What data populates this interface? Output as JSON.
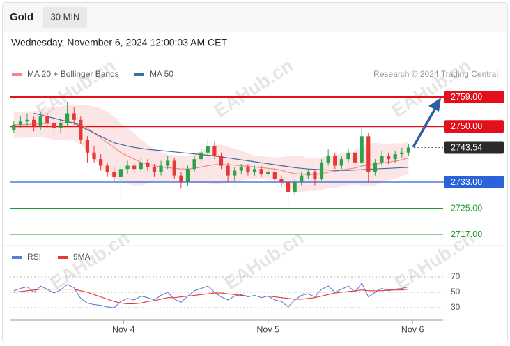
{
  "header": {
    "symbol": "Gold",
    "timeframe": "30 MIN",
    "datetime": "Wednesday, November 6, 2024 12:00:03 AM CET"
  },
  "watermark": "EAHub.cn",
  "chart_data": [
    {
      "type": "candlestick",
      "credit": "Research © 2024 Trading Central",
      "xlim": [
        -0.5,
        60
      ],
      "ylim": [
        2715,
        2761.5
      ],
      "up_color": "#2ba24c",
      "down_color": "#e53935",
      "open": [
        2749,
        2750.5,
        2751.5,
        2752,
        2750,
        2753,
        2751,
        2749.5,
        2751,
        2754,
        2752,
        2746,
        2742,
        2740,
        2738,
        2736,
        2734.5,
        2737,
        2738,
        2737,
        2739,
        2737.5,
        2736,
        2738,
        2739.5,
        2735,
        2733,
        2737,
        2740,
        2742,
        2744,
        2741,
        2738,
        2735,
        2736.5,
        2737.5,
        2736,
        2737,
        2735.5,
        2736,
        2734,
        2733,
        2730,
        2733,
        2735,
        2736,
        2734,
        2739,
        2741,
        2738,
        2740,
        2742,
        2739,
        2747,
        2736,
        2739,
        2741,
        2740,
        2741.5,
        2742
      ],
      "high": [
        2751.5,
        2753,
        2754,
        2753,
        2754.5,
        2754,
        2752,
        2752.5,
        2757.5,
        2756,
        2753,
        2747,
        2744,
        2741.5,
        2739,
        2737.5,
        2738,
        2739.5,
        2739,
        2740.5,
        2740,
        2738.5,
        2739.5,
        2741,
        2740.5,
        2736,
        2738,
        2741,
        2743.5,
        2746,
        2745.5,
        2742,
        2739,
        2737.5,
        2738.5,
        2738.5,
        2738,
        2738,
        2737,
        2737,
        2735,
        2734,
        2734,
        2736,
        2737,
        2737,
        2740,
        2743,
        2742,
        2741,
        2743,
        2743,
        2749.5,
        2748,
        2740,
        2742.5,
        2742,
        2742.5,
        2743.5,
        2744.5
      ],
      "low": [
        2748,
        2749.5,
        2750,
        2748.5,
        2749,
        2749.5,
        2747.5,
        2748,
        2750,
        2750.5,
        2744.5,
        2739,
        2739,
        2736.5,
        2734.5,
        2733,
        2728,
        2735.5,
        2735.5,
        2736,
        2736.5,
        2734.5,
        2735,
        2737,
        2734,
        2731,
        2732,
        2736,
        2739,
        2741,
        2740,
        2737,
        2733,
        2733.5,
        2735.5,
        2735,
        2735,
        2734.5,
        2734.5,
        2733,
        2731.5,
        2725,
        2729,
        2732,
        2734,
        2732,
        2733.5,
        2738,
        2737,
        2737,
        2739,
        2738,
        2738.5,
        2733,
        2735,
        2738,
        2738.5,
        2739,
        2740.5,
        2741
      ],
      "close": [
        2750.5,
        2751.5,
        2752,
        2750,
        2753,
        2751,
        2749.5,
        2751,
        2754,
        2752,
        2746,
        2742,
        2740,
        2738,
        2736,
        2734.5,
        2737,
        2738,
        2737,
        2739,
        2737.5,
        2736,
        2738,
        2739.5,
        2735,
        2733,
        2737,
        2740,
        2742,
        2744,
        2741,
        2738,
        2735,
        2736.5,
        2737.5,
        2736,
        2737,
        2735.5,
        2736,
        2734,
        2733,
        2730,
        2733,
        2735,
        2736,
        2734,
        2739,
        2741,
        2738,
        2740,
        2742,
        2739,
        2747,
        2736,
        2739,
        2741,
        2740,
        2741.5,
        2742,
        2743.54
      ],
      "series": [
        {
          "name": "MA 20 + Bollinger Bands",
          "color": "#f08a8a",
          "band_color": "rgba(245,160,160,0.28)",
          "values": [
            2750.5,
            2750.5,
            2750.6,
            2750.7,
            2750.8,
            2750.9,
            2751,
            2751,
            2751.2,
            2751.2,
            2750.5,
            2749.5,
            2748,
            2746.5,
            2745,
            2743.5,
            2742,
            2741,
            2740,
            2739,
            2738.5,
            2738,
            2737.6,
            2737.4,
            2737.2,
            2737,
            2737,
            2737.2,
            2737.6,
            2738,
            2738.3,
            2738.4,
            2738.3,
            2738.2,
            2738,
            2737.8,
            2737.6,
            2737.4,
            2737.2,
            2737,
            2736.6,
            2736,
            2735.6,
            2735.4,
            2735.3,
            2735.3,
            2735.6,
            2736,
            2736.3,
            2736.7,
            2737,
            2737.3,
            2737.9,
            2738.2,
            2738.5,
            2738.8,
            2739.1,
            2739.4,
            2739.8,
            2740.3
          ],
          "upper": [
            2754.5,
            2754.5,
            2754.6,
            2754.7,
            2754.8,
            2755.4,
            2756,
            2756,
            2756.7,
            2756.7,
            2756.5,
            2756.5,
            2756,
            2755.5,
            2754.5,
            2753,
            2751,
            2749.5,
            2748,
            2746,
            2744.5,
            2743,
            2742.1,
            2741.4,
            2741.2,
            2741,
            2741,
            2741.7,
            2742.6,
            2743.5,
            2744.3,
            2744.4,
            2743.8,
            2743.2,
            2742.5,
            2741.8,
            2741.1,
            2740.9,
            2740.7,
            2740.5,
            2740.6,
            2741,
            2741.1,
            2740.9,
            2740.3,
            2740.3,
            2740.6,
            2741,
            2741.3,
            2741.7,
            2742,
            2742.3,
            2743.9,
            2744.7,
            2745,
            2744.8,
            2744.6,
            2744.9,
            2744.8,
            2745.3
          ],
          "lower": [
            2746.5,
            2746.5,
            2746.6,
            2746.7,
            2746.8,
            2746.4,
            2746,
            2746,
            2745.7,
            2745.7,
            2744.5,
            2742.5,
            2740,
            2737.5,
            2735.5,
            2734,
            2733,
            2732.5,
            2732,
            2732,
            2732.5,
            2733,
            2733.1,
            2733.4,
            2733.2,
            2733,
            2733,
            2732.7,
            2732.6,
            2732.5,
            2732.3,
            2732.4,
            2732.8,
            2733.2,
            2733.5,
            2733.8,
            2734.1,
            2733.9,
            2733.7,
            2733.5,
            2732.6,
            2731,
            2730.1,
            2729.9,
            2730.3,
            2730.3,
            2730.6,
            2731,
            2731.3,
            2731.7,
            2732,
            2732.3,
            2731.9,
            2731.7,
            2732,
            2732.8,
            2733.6,
            2733.9,
            2734.8,
            2735.3
          ]
        },
        {
          "name": "MA 50",
          "color": "#3a6ea8",
          "values": [
            null,
            null,
            null,
            2754,
            2753.5,
            2753,
            2752.5,
            2752,
            2751.5,
            2751,
            2750,
            2749,
            2748,
            2747,
            2746,
            2745,
            2744.5,
            2744,
            2743.6,
            2743.3,
            2743,
            2742.8,
            2742.6,
            2742.4,
            2742.2,
            2742,
            2741.8,
            2741.6,
            2741.4,
            2741.2,
            2741,
            2740.7,
            2740.4,
            2740.1,
            2739.8,
            2739.5,
            2739.2,
            2738.9,
            2738.6,
            2738.3,
            2738,
            2737.7,
            2737.4,
            2737.2,
            2737,
            2736.9,
            2736.8,
            2736.7,
            2736.6,
            2736.6,
            2736.6,
            2736.7,
            2736.8,
            2736.9,
            2737,
            2737.1,
            2737.2,
            2737.3,
            2737.4,
            2737.5
          ]
        }
      ],
      "levels": [
        {
          "value": 2759,
          "label": "2759.00",
          "color": "#e3101b",
          "style": "box"
        },
        {
          "value": 2750,
          "label": "2750.00",
          "color": "#e3101b",
          "style": "box"
        },
        {
          "value": 2733,
          "label": "2733.00",
          "color": "#2962d9",
          "style": "box"
        },
        {
          "value": 2725,
          "label": "2725.00",
          "color": "#1e9a2e",
          "style": "text"
        },
        {
          "value": 2717,
          "label": "2717.00",
          "color": "#1e9a2e",
          "style": "text"
        }
      ],
      "last_price": 2743.54
    },
    {
      "type": "line",
      "xlim": [
        -0.5,
        60
      ],
      "ylim": [
        14,
        86
      ],
      "yticks": [
        30,
        50,
        70
      ],
      "xticks": [
        {
          "value": 16.4,
          "label": "Nov 4"
        },
        {
          "value": 38,
          "label": "Nov 5"
        },
        {
          "value": 59.6,
          "label": "Nov 6"
        }
      ],
      "series": [
        {
          "name": "RSI",
          "color": "#5b7fd6",
          "values": [
            52,
            55,
            57,
            50,
            58,
            54,
            49,
            53,
            60,
            56,
            42,
            36,
            34,
            33,
            31,
            30,
            38,
            42,
            40,
            45,
            43,
            40,
            46,
            50,
            41,
            37,
            45,
            52,
            55,
            58,
            50,
            44,
            40,
            45,
            47,
            44,
            46,
            43,
            45,
            40,
            38,
            31,
            40,
            46,
            48,
            44,
            54,
            58,
            50,
            54,
            58,
            50,
            62,
            44,
            50,
            55,
            52,
            54,
            55,
            57
          ]
        },
        {
          "name": "9MA",
          "color": "#e53935",
          "values": [
            50,
            51,
            52,
            53,
            54,
            54,
            54,
            54,
            54,
            54,
            52,
            50,
            47,
            44,
            41,
            38,
            36,
            35,
            35,
            36,
            38,
            39,
            41,
            43,
            43,
            44,
            45,
            46,
            47,
            48,
            49,
            49,
            48,
            47,
            46,
            45,
            45,
            45,
            45,
            44,
            43,
            42,
            41,
            41,
            42,
            43,
            45,
            47,
            49,
            50,
            51,
            52,
            53,
            52,
            52,
            52,
            53,
            53,
            53,
            54
          ]
        }
      ]
    }
  ]
}
